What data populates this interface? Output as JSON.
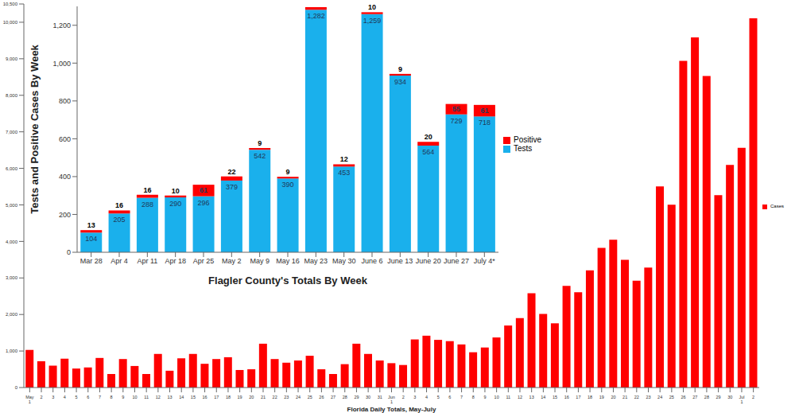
{
  "chart_data": [
    {
      "type": "bar",
      "stacked": true,
      "data_labels": true,
      "legend": "right",
      "xlabel": "Flagler County's Totals By Week",
      "ylabel": "Tests and Positive Cases By Week",
      "categories": [
        "Mar 28",
        "Apr 4",
        "Apr 11",
        "Apr 18",
        "Apr 25",
        "May 2",
        "May 9",
        "May 16",
        "May 23",
        "May 30",
        "June 6",
        "June 13",
        "June 20",
        "June 27",
        "July 4*"
      ],
      "series": [
        {
          "name": "Tests",
          "color": "#1ab0ec",
          "values": [
            104,
            205,
            288,
            290,
            296,
            379,
            542,
            390,
            1282,
            453,
            1259,
            934,
            564,
            729,
            718
          ],
          "value_labels": [
            "104",
            "205",
            "288",
            "290",
            "296",
            "379",
            "542",
            "390",
            "1,282",
            "453",
            "1,259",
            "934",
            "564",
            "729",
            "718"
          ]
        },
        {
          "name": "Positive",
          "color": "#ff0000",
          "values": [
            13,
            16,
            16,
            10,
            61,
            22,
            9,
            9,
            14,
            12,
            10,
            9,
            20,
            55,
            61
          ],
          "value_labels": [
            "13",
            "16",
            "16",
            "10",
            "61",
            "22",
            "9",
            "9",
            null,
            "12",
            "10",
            "9",
            "20",
            "55",
            "61"
          ]
        }
      ],
      "ylim": [
        0,
        1300
      ],
      "yticks": [
        0,
        200,
        400,
        600,
        800,
        {
          "value": 1000,
          "label": "1,000"
        },
        {
          "value": 1200,
          "label": "1,200"
        }
      ]
    },
    {
      "type": "bar",
      "legend": "right",
      "xlabel": "Florida Daily Totals, May-July",
      "categories": [
        "May 1",
        "2",
        "3",
        "4",
        "5",
        "6",
        "7",
        "8",
        "9",
        "10",
        "11",
        "12",
        "13",
        "14",
        "15",
        "16",
        "17",
        "18",
        "19",
        "20",
        "21",
        "22",
        "23",
        "24",
        "25",
        "26",
        "27",
        "28",
        "29",
        "30",
        "31",
        "Jun 1",
        "2",
        "3",
        "4",
        "5",
        "6",
        "7",
        "8",
        "9",
        "10",
        "11",
        "12",
        "13",
        "14",
        "15",
        "16",
        "17",
        "18",
        "19",
        "20",
        "21",
        "22",
        "23",
        "24",
        "25",
        "26",
        "27",
        "28",
        "29",
        "30",
        "Jul 1",
        "2"
      ],
      "series": [
        {
          "name": "Cases",
          "color": "#ff0000",
          "values": [
            1030,
            720,
            600,
            790,
            520,
            550,
            810,
            370,
            780,
            590,
            370,
            920,
            460,
            800,
            920,
            650,
            780,
            830,
            480,
            500,
            1200,
            780,
            680,
            740,
            870,
            500,
            370,
            640,
            1200,
            920,
            740,
            667,
            617,
            1317,
            1419,
            1305,
            1270,
            1180,
            966,
            1096,
            1371,
            1698,
            1902,
            2581,
            2016,
            1758,
            2783,
            2610,
            3207,
            3822,
            4049,
            3494,
            2926,
            3286,
            5508,
            5004,
            8942,
            9585,
            8530,
            5266,
            6093,
            6563,
            10109
          ]
        }
      ],
      "ylim": [
        0,
        10500
      ],
      "yticks": [
        0,
        {
          "value": 1000,
          "label": "1,000"
        },
        {
          "value": 2000,
          "label": "2,000"
        },
        {
          "value": 3000,
          "label": "3,000"
        },
        {
          "value": 4000,
          "label": "4,000"
        },
        {
          "value": 5000,
          "label": "5,000"
        },
        {
          "value": 6000,
          "label": "6,000"
        },
        {
          "value": 7000,
          "label": "7,000"
        },
        {
          "value": 8000,
          "label": "8,000"
        },
        {
          "value": 9000,
          "label": "9,000"
        },
        {
          "value": 10000,
          "label": "10,000"
        },
        {
          "value": 10500,
          "label": "10,500"
        }
      ]
    }
  ]
}
